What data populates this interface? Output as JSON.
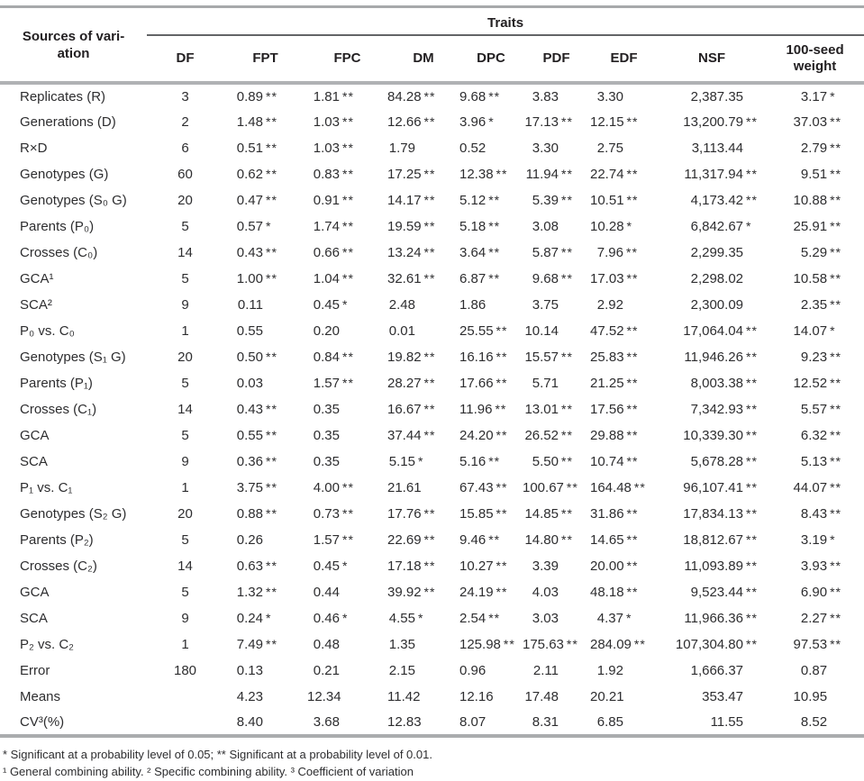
{
  "table": {
    "group_header": "Traits",
    "corner_header": [
      "Sources of vari-",
      "ation"
    ],
    "columns": [
      "DF",
      "FPT",
      "FPC",
      "DM",
      "DPC",
      "PDF",
      "EDF",
      "NSF",
      "100-seed weight"
    ],
    "rows": [
      {
        "label": "Replicates (R)",
        "df": "3",
        "cells": [
          [
            "0.89",
            "**"
          ],
          [
            "1.81",
            "**"
          ],
          [
            "84.28",
            "**"
          ],
          [
            "9.68",
            "**"
          ],
          [
            "3.83",
            ""
          ],
          [
            "3.30",
            ""
          ],
          [
            "2,387.35",
            ""
          ],
          [
            "3.17",
            "*"
          ]
        ]
      },
      {
        "label": "Generations (D)",
        "df": "2",
        "cells": [
          [
            "1.48",
            "**"
          ],
          [
            "1.03",
            "**"
          ],
          [
            "12.66",
            "**"
          ],
          [
            "3.96",
            "*"
          ],
          [
            "17.13",
            "**"
          ],
          [
            "12.15",
            "**"
          ],
          [
            "13,200.79",
            "**"
          ],
          [
            "37.03",
            "**"
          ]
        ]
      },
      {
        "label": "R×D",
        "df": "6",
        "cells": [
          [
            "0.51",
            "**"
          ],
          [
            "1.03",
            "**"
          ],
          [
            "1.79",
            ""
          ],
          [
            "0.52",
            ""
          ],
          [
            "3.30",
            ""
          ],
          [
            "2.75",
            ""
          ],
          [
            "3,113.44",
            ""
          ],
          [
            "2.79",
            "**"
          ]
        ]
      },
      {
        "label": "Genotypes (G)",
        "df": "60",
        "cells": [
          [
            "0.62",
            "**"
          ],
          [
            "0.83",
            "**"
          ],
          [
            "17.25",
            "**"
          ],
          [
            "12.38",
            "**"
          ],
          [
            "11.94",
            "**"
          ],
          [
            "22.74",
            "**"
          ],
          [
            "11,317.94",
            "**"
          ],
          [
            "9.51",
            "**"
          ]
        ]
      },
      {
        "label": "Genotypes (S₀ G)",
        "df": "20",
        "cells": [
          [
            "0.47",
            "**"
          ],
          [
            "0.91",
            "**"
          ],
          [
            "14.17",
            "**"
          ],
          [
            "5.12",
            "**"
          ],
          [
            "5.39",
            "**"
          ],
          [
            "10.51",
            "**"
          ],
          [
            "4,173.42",
            "**"
          ],
          [
            "10.88",
            "**"
          ]
        ]
      },
      {
        "label": "Parents (P₀)",
        "df": "5",
        "cells": [
          [
            "0.57",
            "*"
          ],
          [
            "1.74",
            "**"
          ],
          [
            "19.59",
            "**"
          ],
          [
            "5.18",
            "**"
          ],
          [
            "3.08",
            ""
          ],
          [
            "10.28",
            "*"
          ],
          [
            "6,842.67",
            "*"
          ],
          [
            "25.91",
            "**"
          ]
        ]
      },
      {
        "label": "Crosses (C₀)",
        "df": "14",
        "cells": [
          [
            "0.43",
            "**"
          ],
          [
            "0.66",
            "**"
          ],
          [
            "13.24",
            "**"
          ],
          [
            "3.64",
            "**"
          ],
          [
            "5.87",
            "**"
          ],
          [
            "7.96",
            "**"
          ],
          [
            "2,299.35",
            ""
          ],
          [
            "5.29",
            "**"
          ]
        ]
      },
      {
        "label": "GCA¹",
        "df": "5",
        "cells": [
          [
            "1.00",
            "**"
          ],
          [
            "1.04",
            "**"
          ],
          [
            "32.61",
            "**"
          ],
          [
            "6.87",
            "**"
          ],
          [
            "9.68",
            "**"
          ],
          [
            "17.03",
            "**"
          ],
          [
            "2,298.02",
            ""
          ],
          [
            "10.58",
            "**"
          ]
        ]
      },
      {
        "label": "SCA²",
        "df": "9",
        "cells": [
          [
            "0.11",
            ""
          ],
          [
            "0.45",
            "*"
          ],
          [
            "2.48",
            ""
          ],
          [
            "1.86",
            ""
          ],
          [
            "3.75",
            ""
          ],
          [
            "2.92",
            ""
          ],
          [
            "2,300.09",
            ""
          ],
          [
            "2.35",
            "**"
          ]
        ]
      },
      {
        "label": "P₀ vs. C₀",
        "df": "1",
        "cells": [
          [
            "0.55",
            ""
          ],
          [
            "0.20",
            ""
          ],
          [
            "0.01",
            ""
          ],
          [
            "25.55",
            "**"
          ],
          [
            "10.14",
            ""
          ],
          [
            "47.52",
            "**"
          ],
          [
            "17,064.04",
            "**"
          ],
          [
            "14.07",
            "*"
          ]
        ]
      },
      {
        "label": "Genotypes (S₁ G)",
        "df": "20",
        "cells": [
          [
            "0.50",
            "**"
          ],
          [
            "0.84",
            "**"
          ],
          [
            "19.82",
            "**"
          ],
          [
            "16.16",
            "**"
          ],
          [
            "15.57",
            "**"
          ],
          [
            "25.83",
            "**"
          ],
          [
            "11,946.26",
            "**"
          ],
          [
            "9.23",
            "**"
          ]
        ]
      },
      {
        "label": "Parents (P₁)",
        "df": "5",
        "cells": [
          [
            "0.03",
            ""
          ],
          [
            "1.57",
            "**"
          ],
          [
            "28.27",
            "**"
          ],
          [
            "17.66",
            "**"
          ],
          [
            "5.71",
            ""
          ],
          [
            "21.25",
            "**"
          ],
          [
            "8,003.38",
            "**"
          ],
          [
            "12.52",
            "**"
          ]
        ]
      },
      {
        "label": "Crosses (C₁)",
        "df": "14",
        "cells": [
          [
            "0.43",
            "**"
          ],
          [
            "0.35",
            ""
          ],
          [
            "16.67",
            "**"
          ],
          [
            "11.96",
            "**"
          ],
          [
            "13.01",
            "**"
          ],
          [
            "17.56",
            "**"
          ],
          [
            "7,342.93",
            "**"
          ],
          [
            "5.57",
            "**"
          ]
        ]
      },
      {
        "label": "GCA",
        "df": "5",
        "cells": [
          [
            "0.55",
            "**"
          ],
          [
            "0.35",
            ""
          ],
          [
            "37.44",
            "**"
          ],
          [
            "24.20",
            "**"
          ],
          [
            "26.52",
            "**"
          ],
          [
            "29.88",
            "**"
          ],
          [
            "10,339.30",
            "**"
          ],
          [
            "6.32",
            "**"
          ]
        ]
      },
      {
        "label": "SCA",
        "df": "9",
        "cells": [
          [
            "0.36",
            "**"
          ],
          [
            "0.35",
            ""
          ],
          [
            "5.15",
            "*"
          ],
          [
            "5.16",
            "**"
          ],
          [
            "5.50",
            "**"
          ],
          [
            "10.74",
            "**"
          ],
          [
            "5,678.28",
            "**"
          ],
          [
            "5.13",
            "**"
          ]
        ]
      },
      {
        "label": "P₁ vs. C₁",
        "df": "1",
        "cells": [
          [
            "3.75",
            "**"
          ],
          [
            "4.00",
            "**"
          ],
          [
            "21.61",
            ""
          ],
          [
            "67.43",
            "**"
          ],
          [
            "100.67",
            "**"
          ],
          [
            "164.48",
            "**"
          ],
          [
            "96,107.41",
            "**"
          ],
          [
            "44.07",
            "**"
          ]
        ]
      },
      {
        "label": "Genotypes (S₂ G)",
        "df": "20",
        "cells": [
          [
            "0.88",
            "**"
          ],
          [
            "0.73",
            "**"
          ],
          [
            "17.76",
            "**"
          ],
          [
            "15.85",
            "**"
          ],
          [
            "14.85",
            "**"
          ],
          [
            "31.86",
            "**"
          ],
          [
            "17,834.13",
            "**"
          ],
          [
            "8.43",
            "**"
          ]
        ]
      },
      {
        "label": "Parents (P₂)",
        "df": "5",
        "cells": [
          [
            "0.26",
            ""
          ],
          [
            "1.57",
            "**"
          ],
          [
            "22.69",
            "**"
          ],
          [
            "9.46",
            "**"
          ],
          [
            "14.80",
            "**"
          ],
          [
            "14.65",
            "**"
          ],
          [
            "18,812.67",
            "**"
          ],
          [
            "3.19",
            "*"
          ]
        ]
      },
      {
        "label": "Crosses (C₂)",
        "df": "14",
        "cells": [
          [
            "0.63",
            "**"
          ],
          [
            "0.45",
            "*"
          ],
          [
            "17.18",
            "**"
          ],
          [
            "10.27",
            "**"
          ],
          [
            "3.39",
            ""
          ],
          [
            "20.00",
            "**"
          ],
          [
            "11,093.89",
            "**"
          ],
          [
            "3.93",
            "**"
          ]
        ]
      },
      {
        "label": "GCA",
        "df": "5",
        "cells": [
          [
            "1.32",
            "**"
          ],
          [
            "0.44",
            ""
          ],
          [
            "39.92",
            "**"
          ],
          [
            "24.19",
            "**"
          ],
          [
            "4.03",
            ""
          ],
          [
            "48.18",
            "**"
          ],
          [
            "9,523.44",
            "**"
          ],
          [
            "6.90",
            "**"
          ]
        ]
      },
      {
        "label": "SCA",
        "df": "9",
        "cells": [
          [
            "0.24",
            "*"
          ],
          [
            "0.46",
            "*"
          ],
          [
            "4.55",
            "*"
          ],
          [
            "2.54",
            "**"
          ],
          [
            "3.03",
            ""
          ],
          [
            "4.37",
            "*"
          ],
          [
            "11,966.36",
            "**"
          ],
          [
            "2.27",
            "**"
          ]
        ]
      },
      {
        "label": "P₂ vs. C₂",
        "df": "1",
        "cells": [
          [
            "7.49",
            "**"
          ],
          [
            "0.48",
            ""
          ],
          [
            "1.35",
            ""
          ],
          [
            "125.98",
            "**"
          ],
          [
            "175.63",
            "**"
          ],
          [
            "284.09",
            "**"
          ],
          [
            "107,304.80",
            "**"
          ],
          [
            "97.53",
            "**"
          ]
        ]
      },
      {
        "label": "Error",
        "df": "180",
        "cells": [
          [
            "0.13",
            ""
          ],
          [
            "0.21",
            ""
          ],
          [
            "2.15",
            ""
          ],
          [
            "0.96",
            ""
          ],
          [
            "2.11",
            ""
          ],
          [
            "1.92",
            ""
          ],
          [
            "1,666.37",
            ""
          ],
          [
            "0.87",
            ""
          ]
        ]
      },
      {
        "label": "Means",
        "df": "",
        "cells": [
          [
            "4.23",
            ""
          ],
          [
            "12.34",
            ""
          ],
          [
            "11.42",
            ""
          ],
          [
            "12.16",
            ""
          ],
          [
            "17.48",
            ""
          ],
          [
            "20.21",
            ""
          ],
          [
            "353.47",
            ""
          ],
          [
            "10.95",
            ""
          ]
        ]
      },
      {
        "label": "CV³(%)",
        "df": "",
        "cells": [
          [
            "8.40",
            ""
          ],
          [
            "3.68",
            ""
          ],
          [
            "12.83",
            ""
          ],
          [
            "8.07",
            ""
          ],
          [
            "8.31",
            ""
          ],
          [
            "6.85",
            ""
          ],
          [
            "11.55",
            ""
          ],
          [
            "8.52",
            ""
          ]
        ]
      }
    ]
  },
  "footnotes": [
    "* Significant at a probability level of 0.05; ** Significant at a probability level of 0.01.",
    "¹ General combining ability. ² Specific combining ability. ³ Coefficient of variation"
  ]
}
